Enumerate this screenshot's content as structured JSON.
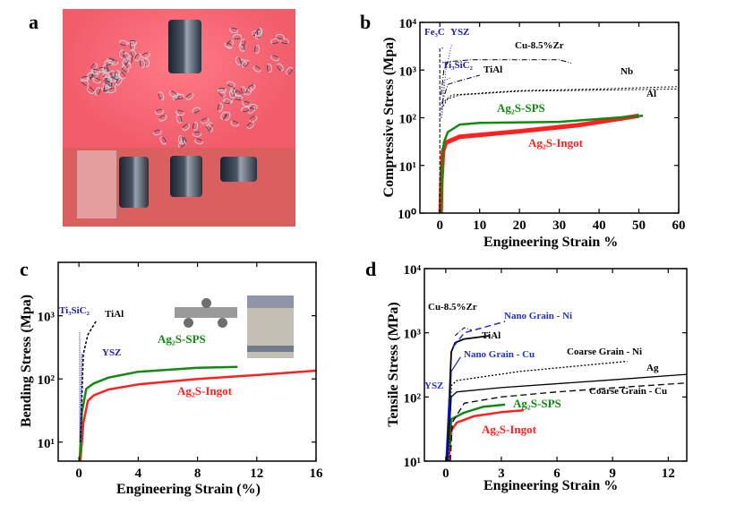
{
  "panels": {
    "a": "a",
    "b": "b",
    "c": "c",
    "d": "d"
  },
  "chart_data": [
    {
      "id": "b",
      "type": "line",
      "title": "",
      "xlabel": "Engineering Strain %",
      "ylabel": "Compressive Stress (Mpa)",
      "xlim": [
        -5,
        60
      ],
      "ylim": [
        1,
        10000
      ],
      "yscale": "log",
      "xticks": [
        0,
        10,
        20,
        30,
        40,
        50,
        60
      ],
      "xtick_labels": [
        "0",
        "10",
        "20",
        "30",
        "40",
        "50",
        "60"
      ],
      "yticks": [
        1,
        10,
        100,
        1000,
        10000
      ],
      "ytick_labels": [
        "10⁰",
        "10¹",
        "10²",
        "10³",
        "10⁴"
      ],
      "series": [
        {
          "name": "Ag₂S-Ingot",
          "color": "#ff2020",
          "dash": "",
          "width": 5,
          "points": [
            [
              0.2,
              1
            ],
            [
              0.4,
              5
            ],
            [
              0.8,
              20
            ],
            [
              1.5,
              30
            ],
            [
              5,
              40
            ],
            [
              20,
              52
            ],
            [
              35,
              70
            ],
            [
              50,
              110
            ]
          ]
        },
        {
          "name": "Ag₂S-SPS",
          "color": "#108a10",
          "dash": "",
          "width": 2.5,
          "points": [
            [
              0.3,
              1
            ],
            [
              0.6,
              10
            ],
            [
              1,
              30
            ],
            [
              2,
              50
            ],
            [
              5,
              72
            ],
            [
              10,
              78
            ],
            [
              30,
              82
            ],
            [
              51,
              110
            ]
          ]
        },
        {
          "name": "Al",
          "color": "#000",
          "dash": "2,2",
          "width": 1,
          "points": [
            [
              0.3,
              150
            ],
            [
              2,
              250
            ],
            [
              5,
              300
            ],
            [
              20,
              360
            ],
            [
              60,
              400
            ]
          ]
        },
        {
          "name": "Nb",
          "color": "#000",
          "dash": "2,2",
          "width": 1,
          "points": [
            [
              0.5,
              200
            ],
            [
              3,
              300
            ],
            [
              20,
              370
            ],
            [
              40,
              400
            ],
            [
              60,
              450
            ]
          ]
        },
        {
          "name": "Cu-8.5%Zr",
          "color": "#000",
          "dash": "6,2,1,2",
          "width": 1,
          "points": [
            [
              0.3,
              300
            ],
            [
              1,
              1000
            ],
            [
              2,
              1500
            ],
            [
              8,
              1650
            ],
            [
              30,
              1650
            ],
            [
              33,
              1400
            ]
          ]
        },
        {
          "name": "TiAl",
          "color": "#000",
          "dash": "6,2,1,2",
          "width": 1,
          "points": [
            [
              0.5,
              200
            ],
            [
              2,
              500
            ],
            [
              5,
              600
            ],
            [
              10,
              780
            ]
          ]
        },
        {
          "name": "Fe₃C",
          "color": "#000",
          "dash": "4,2",
          "width": 1,
          "points": [
            [
              0,
              1
            ],
            [
              0,
              2800
            ],
            [
              0.8,
              2900
            ]
          ]
        },
        {
          "name": "YSZ",
          "color": "#2020b0",
          "dash": "1,2",
          "width": 1,
          "points": [
            [
              0.5,
              100
            ],
            [
              1.5,
              1000
            ],
            [
              3,
              3500
            ]
          ]
        },
        {
          "name": "Ti₃SiC₂",
          "color": "#2020b0",
          "dash": "1,2",
          "width": 1,
          "points": [
            [
              0.3,
              100
            ],
            [
              1,
              600
            ],
            [
              3,
              700
            ]
          ]
        }
      ]
    },
    {
      "id": "c",
      "type": "line",
      "title": "",
      "xlabel": "Engineering Strain (%)",
      "ylabel": "Bending Stress (Mpa)",
      "xlim": [
        -1.4,
        16
      ],
      "ylim": [
        5,
        7000
      ],
      "yscale": "log",
      "xticks": [
        0,
        4,
        8,
        12,
        16
      ],
      "xtick_labels": [
        "0",
        "4",
        "8",
        "12",
        "16"
      ],
      "yticks": [
        10,
        100,
        1000
      ],
      "ytick_labels": [
        "10¹",
        "10²",
        "10³"
      ],
      "series": [
        {
          "name": "Ag₂S-Ingot",
          "color": "#ff2020",
          "dash": "",
          "width": 2.5,
          "points": [
            [
              0.1,
              5
            ],
            [
              0.3,
              20
            ],
            [
              0.6,
              45
            ],
            [
              1,
              55
            ],
            [
              2,
              68
            ],
            [
              4,
              82
            ],
            [
              8,
              100
            ],
            [
              12,
              115
            ],
            [
              16,
              135
            ]
          ]
        },
        {
          "name": "Ag₂S-SPS",
          "color": "#108a10",
          "dash": "",
          "width": 2.5,
          "points": [
            [
              0.05,
              5
            ],
            [
              0.2,
              30
            ],
            [
              0.5,
              70
            ],
            [
              1,
              85
            ],
            [
              2,
              105
            ],
            [
              4,
              130
            ],
            [
              8,
              150
            ],
            [
              10.7,
              155
            ]
          ]
        },
        {
          "name": "TiAl",
          "color": "#000",
          "dash": "3,2",
          "width": 1.5,
          "points": [
            [
              0.1,
              10
            ],
            [
              0.3,
              250
            ],
            [
              0.6,
              500
            ],
            [
              1.2,
              850
            ]
          ]
        },
        {
          "name": "Ti₃SiC₂",
          "color": "#2020b0",
          "dash": "1,1",
          "width": 1,
          "points": [
            [
              0.05,
              10
            ],
            [
              0.05,
              550
            ]
          ]
        },
        {
          "name": "YSZ",
          "color": "#2020b0",
          "dash": "1,1",
          "width": 1.5,
          "points": [
            [
              0.1,
              10
            ],
            [
              0.2,
              250
            ]
          ]
        }
      ]
    },
    {
      "id": "d",
      "type": "line",
      "title": "",
      "xlabel": "Engineering Strain %",
      "ylabel": "Tensile Stress (MPa)",
      "xlim": [
        -1.15,
        13
      ],
      "ylim": [
        10,
        10000
      ],
      "yscale": "log",
      "xticks": [
        0,
        3,
        6,
        9,
        12
      ],
      "xtick_labels": [
        "0",
        "3",
        "6",
        "9",
        "12"
      ],
      "yticks": [
        10,
        100,
        1000,
        10000
      ],
      "ytick_labels": [
        "10¹",
        "10²",
        "10³",
        "10⁴"
      ],
      "series": [
        {
          "name": "Ag₂S-Ingot",
          "color": "#ff2020",
          "dash": "",
          "width": 2.5,
          "points": [
            [
              0.15,
              10
            ],
            [
              0.3,
              30
            ],
            [
              0.6,
              40
            ],
            [
              1.5,
              50
            ],
            [
              3,
              58
            ],
            [
              4.2,
              62
            ]
          ]
        },
        {
          "name": "Ag₂S-SPS",
          "color": "#108a10",
          "dash": "",
          "width": 2.5,
          "points": [
            [
              0.1,
              10
            ],
            [
              0.3,
              45
            ],
            [
              1,
              57
            ],
            [
              2,
              70
            ],
            [
              3.2,
              76
            ]
          ]
        },
        {
          "name": "Coarse Grain - Cu",
          "color": "#000",
          "dash": "7,4",
          "width": 1.3,
          "points": [
            [
              0.25,
              10
            ],
            [
              0.35,
              40
            ],
            [
              1,
              80
            ],
            [
              3,
              100
            ],
            [
              6,
              120
            ],
            [
              10,
              145
            ],
            [
              13,
              165
            ]
          ]
        },
        {
          "name": "Ag",
          "color": "#000",
          "dash": "",
          "width": 1.3,
          "points": [
            [
              0.1,
              10
            ],
            [
              0.3,
              100
            ],
            [
              0.6,
              120
            ],
            [
              3,
              140
            ],
            [
              9,
              185
            ],
            [
              13,
              225
            ]
          ]
        },
        {
          "name": "Coarse Grain - Ni",
          "color": "#000",
          "dash": "2,2",
          "width": 1.3,
          "points": [
            [
              0.15,
              10
            ],
            [
              0.3,
              150
            ],
            [
              0.6,
              180
            ],
            [
              4,
              250
            ],
            [
              9.8,
              360
            ]
          ]
        },
        {
          "name": "Nano Grain - Cu",
          "color": "#2030d0",
          "dash": "",
          "width": 1.3,
          "points": [
            [
              0.1,
              10
            ],
            [
              0.3,
              250
            ],
            [
              0.8,
              420
            ]
          ]
        },
        {
          "name": "TiAl",
          "color": "#000",
          "dash": "",
          "width": 1.8,
          "points": [
            [
              0.05,
              10
            ],
            [
              0.3,
              500
            ],
            [
              0.5,
              700
            ],
            [
              1,
              800
            ],
            [
              2.4,
              900
            ]
          ]
        },
        {
          "name": "Nano Grain - Ni",
          "color": "#2030d0",
          "dash": "7,4",
          "width": 1.5,
          "points": [
            [
              0.4,
              600
            ],
            [
              1,
              1000
            ],
            [
              3.2,
              1500
            ]
          ]
        },
        {
          "name": "Cu-8.5%Zr",
          "color": "#000",
          "dash": "5,2,1,2",
          "width": 1,
          "points": [
            [
              0.5,
              900
            ],
            [
              1,
              1200
            ],
            [
              1.4,
              1100
            ]
          ]
        },
        {
          "name": "YSZ",
          "color": "#2030d0",
          "dash": "",
          "width": 1,
          "points": [
            [
              0,
              10
            ],
            [
              0.2,
              150
            ]
          ]
        }
      ]
    }
  ]
}
